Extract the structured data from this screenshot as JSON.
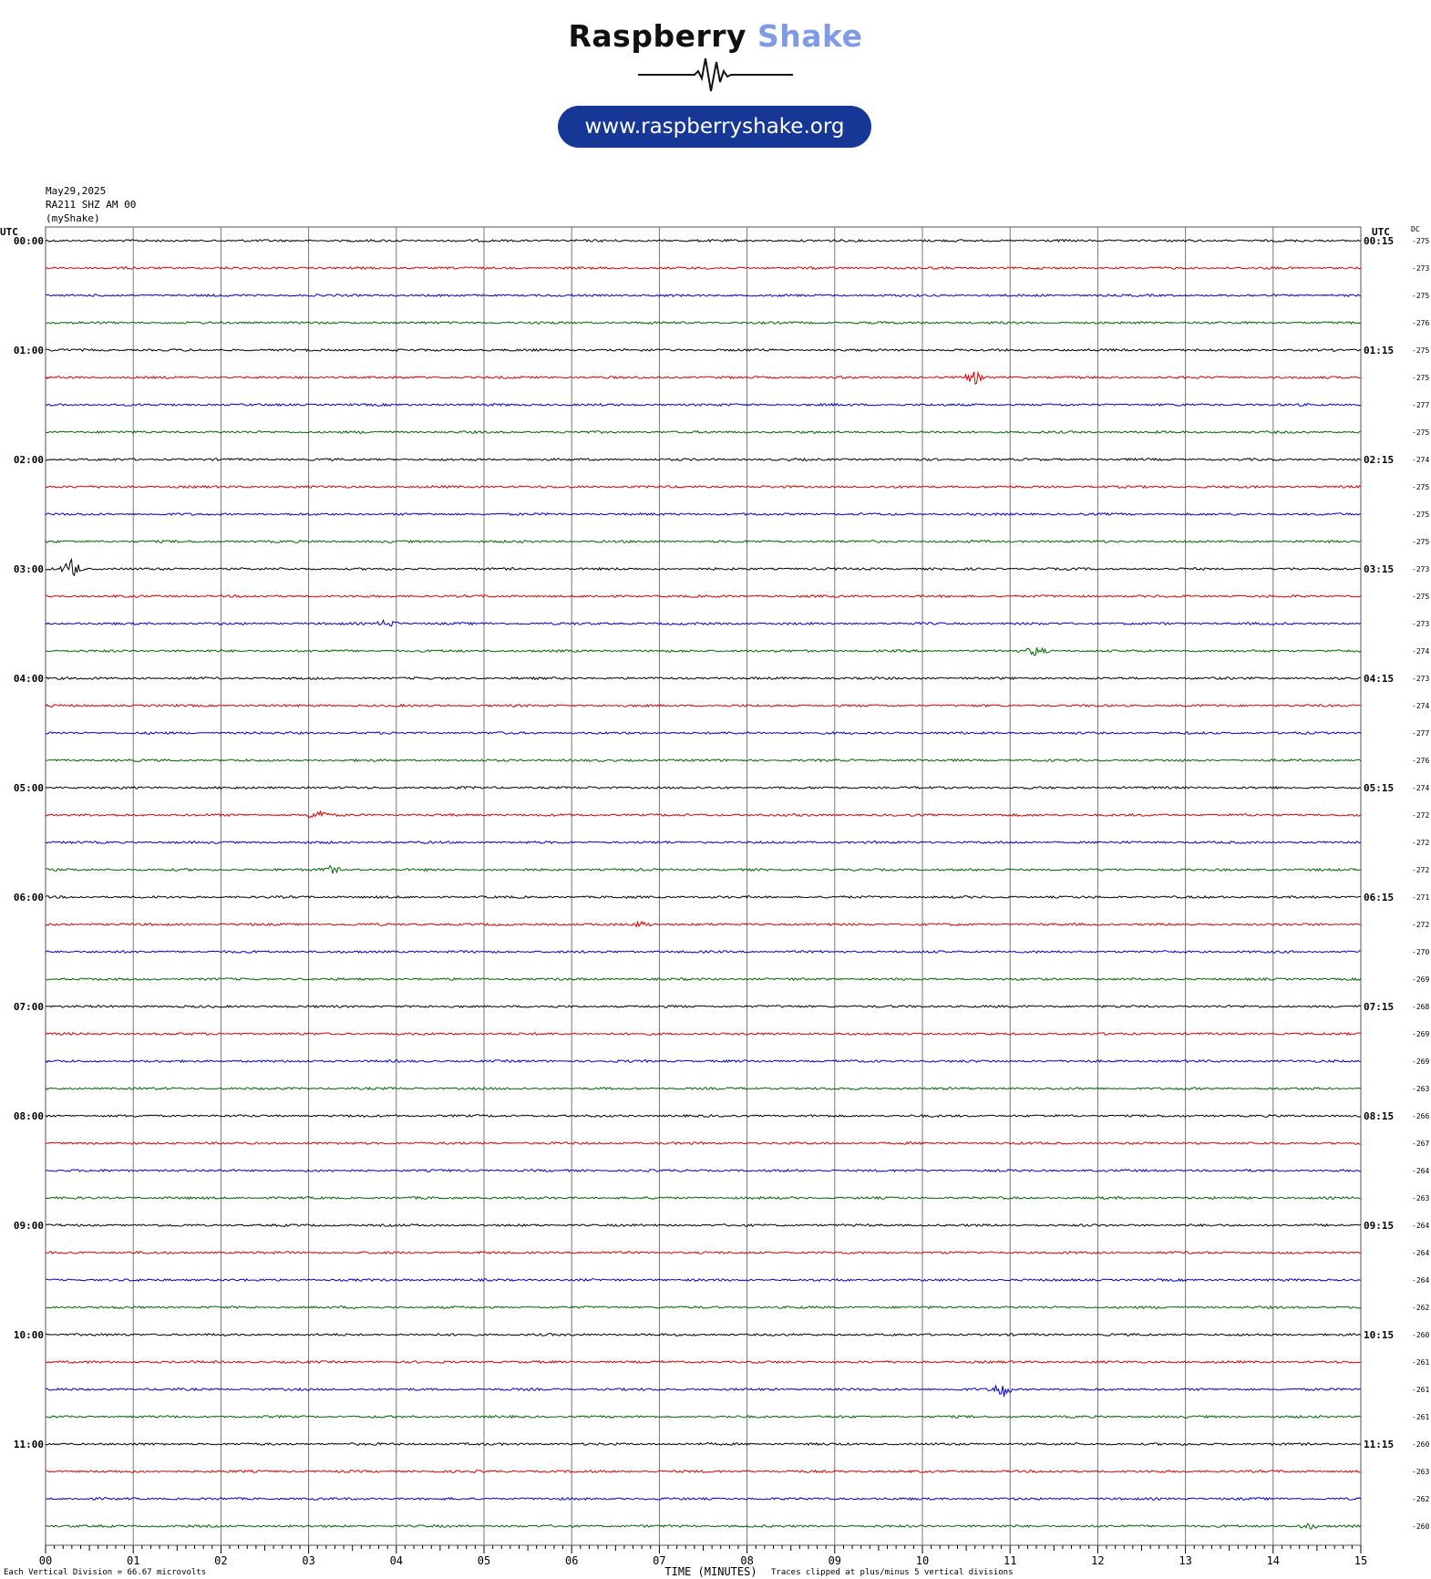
{
  "logo": {
    "word1": "Raspberry",
    "word2": "Shake",
    "url": "www.raspberryshake.org",
    "colors": {
      "dark": "#111111",
      "accent": "#7f9be6",
      "pill": "#173796"
    }
  },
  "header": {
    "date": "May29,2025",
    "station": "RA211 SHZ AM 00",
    "network": "(myShake)"
  },
  "chart_data": {
    "type": "line",
    "left_axis_label": "UTC",
    "right_axis_label": "UTC",
    "dc_label": "DC",
    "x_label": "TIME (MINUTES)",
    "x_ticks": [
      "00",
      "01",
      "02",
      "03",
      "04",
      "05",
      "06",
      "07",
      "08",
      "09",
      "10",
      "11",
      "12",
      "13",
      "14",
      "15"
    ],
    "xlim": [
      0,
      15
    ],
    "trace_colors": [
      "#000000",
      "#dd0000",
      "#0000cc",
      "#006600"
    ],
    "hour_labels_left": [
      "00:00",
      "01:00",
      "02:00",
      "03:00",
      "04:00",
      "05:00",
      "06:00",
      "07:00",
      "08:00",
      "09:00",
      "10:00",
      "11:00"
    ],
    "hour_labels_right": [
      "00:15",
      "01:15",
      "02:15",
      "03:15",
      "04:15",
      "05:15",
      "06:15",
      "07:15",
      "08:15",
      "09:15",
      "10:15",
      "11:15"
    ],
    "dc_values": [
      "-275",
      "-273",
      "-275",
      "-276",
      "-275",
      "-275",
      "-277",
      "-275",
      "-274",
      "-275",
      "-275",
      "-275",
      "-273",
      "-275",
      "-273",
      "-274",
      "-273",
      "-274",
      "-277",
      "-276",
      "-274",
      "-272",
      "-272",
      "-272",
      "-271",
      "-272",
      "-270",
      "-269",
      "-268",
      "-269",
      "-269",
      "-263",
      "-266",
      "-267",
      "-264",
      "-263",
      "-264",
      "-264",
      "-264",
      "-262",
      "-260",
      "-261",
      "-261",
      "-261",
      "-260",
      "-263",
      "-262",
      "-260"
    ],
    "events": [
      {
        "trace": 5,
        "minute": 10.6,
        "amp": 6
      },
      {
        "trace": 12,
        "minute": 0.3,
        "amp": 10
      },
      {
        "trace": 14,
        "minute": 3.9,
        "amp": 4
      },
      {
        "trace": 15,
        "minute": 11.3,
        "amp": 5
      },
      {
        "trace": 21,
        "minute": 3.1,
        "amp": 6
      },
      {
        "trace": 23,
        "minute": 3.25,
        "amp": 4
      },
      {
        "trace": 25,
        "minute": 6.8,
        "amp": 3
      },
      {
        "trace": 42,
        "minute": 10.9,
        "amp": 9
      },
      {
        "trace": 47,
        "minute": 14.4,
        "amp": 3
      }
    ]
  },
  "footer": {
    "division_label": "Each Vertical Division =",
    "division_value": "66.67 microvolts",
    "clip_note": "Traces clipped at plus/minus 5 vertical divisions"
  }
}
